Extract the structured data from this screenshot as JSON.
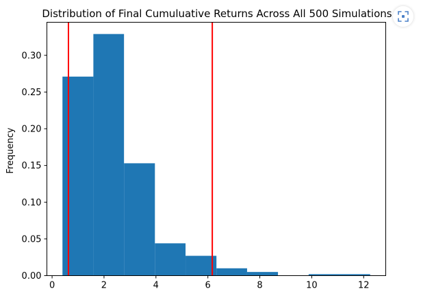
{
  "chart_data": {
    "type": "histogram",
    "title": "Distribution of Final Cumuluative Returns Across All 500 Simulations",
    "xlabel": "",
    "ylabel": "Frequency",
    "bins": [
      {
        "x0": 0.4,
        "x1": 1.59,
        "value": 0.271
      },
      {
        "x0": 1.59,
        "x1": 2.77,
        "value": 0.329
      },
      {
        "x0": 2.77,
        "x1": 3.96,
        "value": 0.153
      },
      {
        "x0": 3.96,
        "x1": 5.14,
        "value": 0.044
      },
      {
        "x0": 5.14,
        "x1": 6.33,
        "value": 0.027
      },
      {
        "x0": 6.33,
        "x1": 7.51,
        "value": 0.01
      },
      {
        "x0": 7.51,
        "x1": 8.7,
        "value": 0.005
      },
      {
        "x0": 8.7,
        "x1": 9.88,
        "value": 0.0
      },
      {
        "x0": 9.88,
        "x1": 11.07,
        "value": 0.002
      },
      {
        "x0": 11.07,
        "x1": 12.25,
        "value": 0.002
      }
    ],
    "reference_lines": [
      0.63,
      6.17
    ],
    "xlim": [
      -0.2,
      12.85
    ],
    "ylim": [
      0,
      0.345
    ],
    "xticks": [
      0,
      2,
      4,
      6,
      8,
      10,
      12
    ],
    "yticks": [
      "0.00",
      "0.05",
      "0.10",
      "0.15",
      "0.20",
      "0.25",
      "0.30"
    ],
    "grid": false,
    "bar_color": "#1f77b4",
    "line_color": "#ff0000"
  },
  "toolbar": {
    "icon": "focus-frame-icon",
    "accent_color": "#4a80c8"
  }
}
